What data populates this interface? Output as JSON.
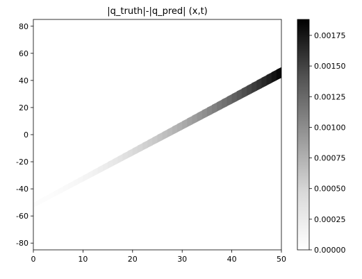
{
  "chart_data": {
    "type": "heatmap",
    "title": "|q_truth|-|q_pred| (x,t)",
    "xlabel": "",
    "ylabel": "",
    "xlim": [
      0,
      50
    ],
    "ylim": [
      -85,
      85
    ],
    "x_ticks": [
      0,
      10,
      20,
      30,
      40,
      50
    ],
    "y_ticks": [
      -80,
      -60,
      -40,
      -20,
      0,
      20,
      40,
      60,
      80
    ],
    "colormap": "Greys",
    "colorbar": {
      "range": [
        0.0,
        0.00188
      ],
      "ticks": [
        0.0,
        0.00025,
        0.0005,
        0.00075,
        0.001,
        0.00125,
        0.0015,
        0.00175
      ],
      "tick_labels": [
        "0.00000",
        "0.00025",
        "0.00050",
        "0.00075",
        "0.00100",
        "0.00125",
        "0.00150",
        "0.00175"
      ]
    },
    "bands": [
      {
        "description": "positive difference (dark) ridge",
        "x_start": 0,
        "x_center_start": -52,
        "x_end": 50,
        "x_center_end": 46,
        "peak_value_start": 2e-05,
        "peak_value_end": 0.00185
      },
      {
        "description": "near-zero (light) trough below ridge",
        "x_start": 0,
        "x_center_start": -55,
        "x_end": 50,
        "x_center_end": 42
      }
    ],
    "grid": false,
    "legend": "none"
  }
}
